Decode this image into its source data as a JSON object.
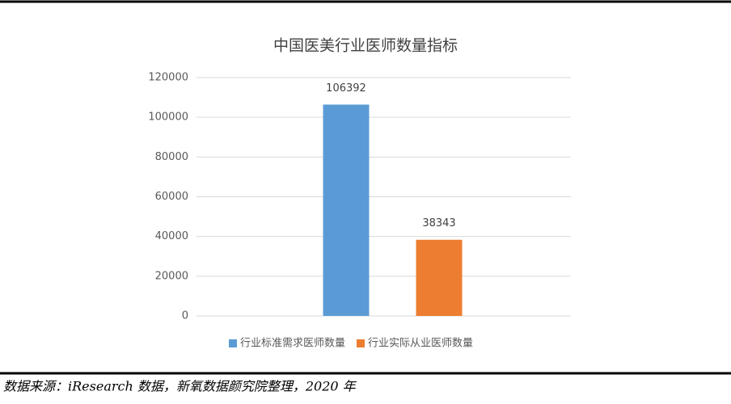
{
  "chart_data": {
    "type": "bar",
    "title": "中国医美行业医师数量指标",
    "categories": [
      null
    ],
    "series": [
      {
        "name": "行业标准需求医师数量",
        "color": "#5b9bd5",
        "values": [
          106392
        ]
      },
      {
        "name": "行业实际从业医师数量",
        "color": "#ed7d31",
        "values": [
          38343
        ]
      }
    ],
    "ylim": [
      0,
      120000
    ],
    "yticks": [
      0,
      20000,
      40000,
      60000,
      80000,
      100000,
      120000
    ],
    "grid": true,
    "legend": "bottom",
    "source": "数据来源：iResearch 数据，新氧数据颜究院整理，2020 年"
  }
}
